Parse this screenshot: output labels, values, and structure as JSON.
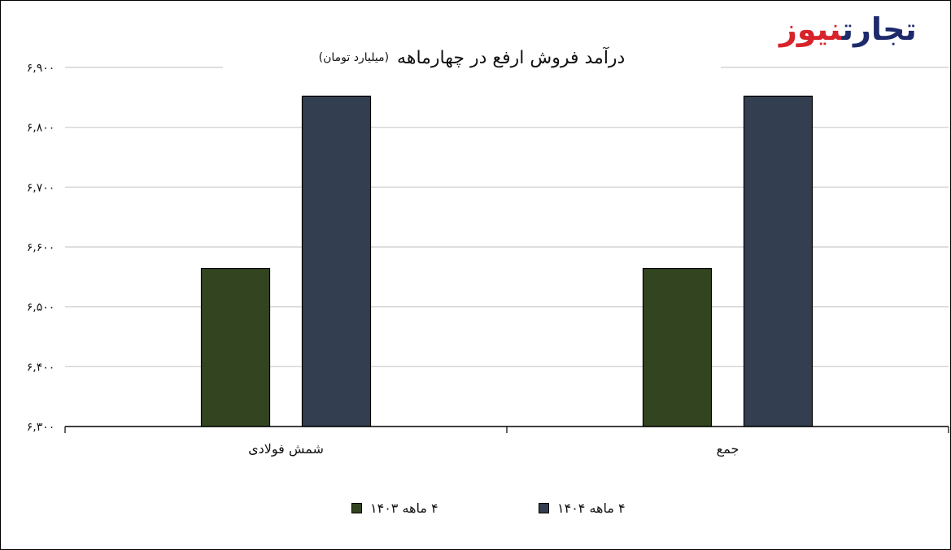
{
  "brand": {
    "part1": "تجارت",
    "part2": "نیوز"
  },
  "title": "درآمد فروش ارفع در چهارماهه",
  "subtitle": "(میلیارد تومان)",
  "chart_data": {
    "type": "bar",
    "categories": [
      "شمش فولادی",
      "جمع"
    ],
    "series": [
      {
        "name": "۴ ماهه ۱۴۰۳",
        "color": "#334520",
        "values": [
          6564,
          6564
        ]
      },
      {
        "name": "۴ ماهه ۱۴۰۴",
        "color": "#333f50",
        "values": [
          6852,
          6852
        ]
      }
    ],
    "ylim": [
      6300,
      6900
    ],
    "yticks": [
      6300,
      6400,
      6500,
      6600,
      6700,
      6800,
      6900
    ],
    "ytick_labels": [
      "۶,۳۰۰",
      "۶,۴۰۰",
      "۶,۵۰۰",
      "۶,۶۰۰",
      "۶,۷۰۰",
      "۶,۸۰۰",
      "۶,۹۰۰"
    ],
    "grid": true,
    "legend": "bottom"
  }
}
